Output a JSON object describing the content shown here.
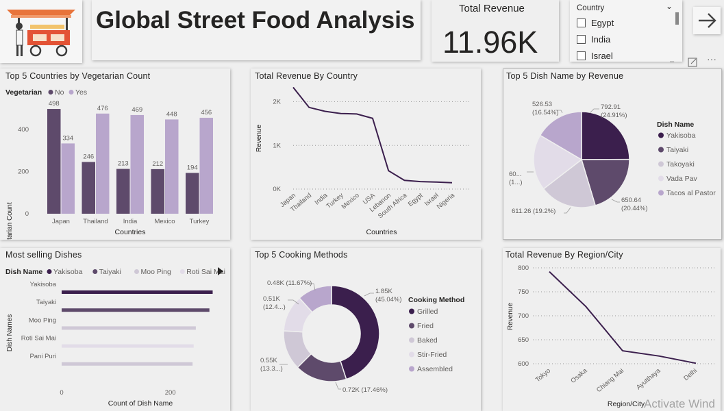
{
  "header": {
    "title": "Global Street Food Analysis",
    "logo_icon": "food-cart-icon"
  },
  "kpi": {
    "label": "Total Revenue",
    "value": "11.96K"
  },
  "slicer": {
    "title": "Country",
    "items": [
      "Egypt",
      "India",
      "Israel"
    ]
  },
  "toolbar": {
    "next_icon": "arrow-right-icon",
    "focus_icon": "expand-icon",
    "more_icon": "more-options-icon"
  },
  "watermark": "Activate Wind",
  "colors": {
    "dark": "#3b1f4d",
    "mid": "#5e4a6b",
    "light": "#b8a6cc",
    "lighter": "#cfc8d6",
    "lightest": "#e2dce8"
  },
  "veg_chart": {
    "title": "Top 5 Countries by Vegetarian Count",
    "legend_title": "Vegetarian",
    "legend": [
      "No",
      "Yes"
    ],
    "xlabel": "Countries",
    "ylabel": "Vegetarian Count",
    "yticks": [
      "0",
      "200",
      "400"
    ],
    "chart_data": {
      "type": "bar",
      "categories": [
        "Japan",
        "Thailand",
        "India",
        "Mexico",
        "Turkey"
      ],
      "series": [
        {
          "name": "No",
          "values": [
            498,
            246,
            213,
            212,
            194
          ]
        },
        {
          "name": "Yes",
          "values": [
            334,
            476,
            469,
            448,
            456
          ]
        }
      ],
      "ylim": [
        0,
        560
      ]
    }
  },
  "revenue_country": {
    "title": "Total Revenue By Country",
    "xlabel": "Countries",
    "ylabel": "Revenue",
    "yticks": [
      "0K",
      "1K",
      "2K"
    ],
    "chart_data": {
      "type": "line",
      "categories": [
        "Japan",
        "Thailand",
        "India",
        "Turkey",
        "Mexico",
        "USA",
        "Lebanon",
        "South Africa",
        "Egypt",
        "Israel",
        "Nigeria"
      ],
      "values": [
        2330,
        1870,
        1780,
        1730,
        1720,
        1620,
        420,
        200,
        170,
        160,
        145
      ],
      "ylim": [
        0,
        2400
      ]
    }
  },
  "dish_pie": {
    "title": "Top 5 Dish Name by Revenue",
    "legend_title": "Dish Name",
    "labels": [
      "792.91\n(24.91%)",
      "650.64\n(20.44%)",
      "611.26 (19.2%)",
      "60...\n(1...)",
      "526.53\n(16.54%)"
    ],
    "chart_data": {
      "type": "pie",
      "categories": [
        "Yakisoba",
        "Taiyaki",
        "Takoyaki",
        "Vada Pav",
        "Tacos al Pastor"
      ],
      "values": [
        792.91,
        650.64,
        611.26,
        602.0,
        526.53
      ],
      "percent": [
        24.91,
        20.44,
        19.2,
        18.91,
        16.54
      ]
    }
  },
  "most_selling": {
    "title": "Most selling Dishes",
    "legend_title": "Dish Name",
    "legend": [
      "Yakisoba",
      "Taiyaki",
      "Moo Ping",
      "Roti Sai Mai"
    ],
    "xlabel": "Count of Dish Name",
    "ylabel": "Dish Names",
    "xticks": [
      "0",
      "200"
    ],
    "chart_data": {
      "type": "bar",
      "categories": [
        "Yakisoba",
        "Taiyaki",
        "Moo Ping",
        "Roti Sai Mai",
        "Pani Puri"
      ],
      "values": [
        278,
        272,
        247,
        243,
        241
      ],
      "xlim": [
        0,
        290
      ]
    }
  },
  "cooking": {
    "title": "Top 5 Cooking Methods",
    "legend_title": "Cooking Method",
    "labels": [
      "1.85K\n(45.04%)",
      "0.72K (17.46%)",
      "0.55K\n(13.3...)",
      "0.51K\n(12.4...)",
      "0.48K (11.67%)"
    ],
    "chart_data": {
      "type": "pie",
      "categories": [
        "Grilled",
        "Fried",
        "Baked",
        "Stir-Fried",
        "Assembled"
      ],
      "values": [
        1850,
        720,
        550,
        510,
        480
      ],
      "percent": [
        45.04,
        17.46,
        13.3,
        12.4,
        11.67
      ]
    }
  },
  "region": {
    "title": "Total Revenue By Region/City",
    "xlabel": "Region/City",
    "ylabel": "Revenue",
    "yticks": [
      "600",
      "650",
      "700",
      "750",
      "800"
    ],
    "chart_data": {
      "type": "line",
      "categories": [
        "Tokyo",
        "Osaka",
        "Chiang Mai",
        "Ayutthaya",
        "Delhi"
      ],
      "values": [
        792,
        719,
        627,
        616,
        601
      ],
      "ylim": [
        600,
        800
      ]
    }
  }
}
